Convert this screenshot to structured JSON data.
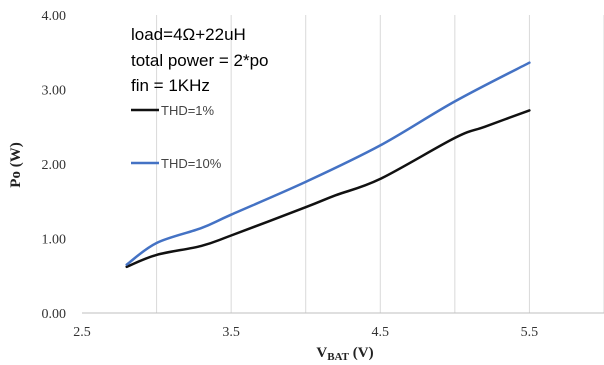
{
  "chart_data": {
    "type": "line",
    "xlabel": "V",
    "xlabel_sub": "BAT",
    "xlabel_unit": " (V)",
    "ylabel": "Po (W)",
    "xlim": [
      2.5,
      6.0
    ],
    "ylim": [
      0,
      4
    ],
    "x_ticks": [
      "2.5",
      "3.5",
      "4.5",
      "5.5"
    ],
    "y_ticks": [
      "0.00",
      "1.00",
      "2.00",
      "3.00",
      "4.00"
    ],
    "grid": "vertical",
    "annotations": [
      "load=4Ω+22uH",
      "total power = 2*po",
      "fin = 1KHz"
    ],
    "series": [
      {
        "name": "THD=1%",
        "color": "#111111",
        "x": [
          2.8,
          3.0,
          3.3,
          3.5,
          4.0,
          4.2,
          4.5,
          5.0,
          5.2,
          5.5
        ],
        "values": [
          0.62,
          0.78,
          0.9,
          1.04,
          1.42,
          1.58,
          1.8,
          2.35,
          2.5,
          2.72
        ]
      },
      {
        "name": "THD=10%",
        "color": "#4472C4",
        "x": [
          2.8,
          3.0,
          3.3,
          3.5,
          4.0,
          4.5,
          5.0,
          5.5
        ],
        "values": [
          0.65,
          0.94,
          1.14,
          1.32,
          1.76,
          2.25,
          2.84,
          3.36
        ]
      }
    ]
  }
}
